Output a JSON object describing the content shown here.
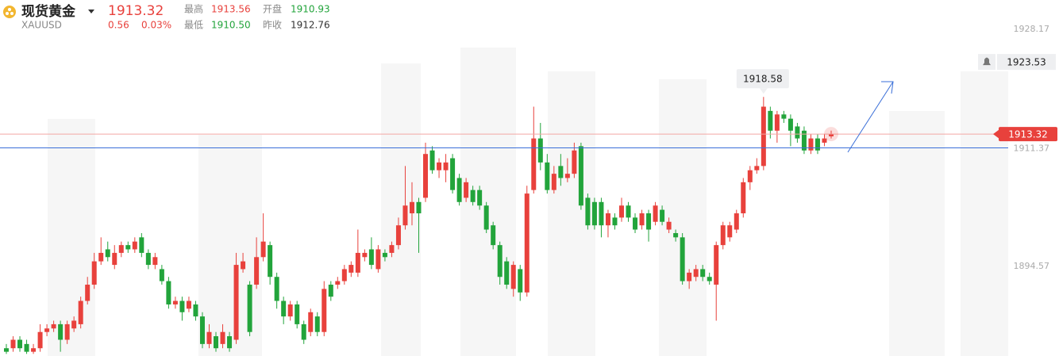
{
  "header": {
    "name": "现货黄金",
    "symbol": "XAUUSD",
    "price": "1913.32",
    "change": "0.56",
    "change_pct": "0.03%",
    "stats": [
      [
        "最高",
        "1913.56"
      ],
      [
        "开盘",
        "1910.93"
      ],
      [
        "最低",
        "1910.50"
      ],
      [
        "昨收",
        "1912.76"
      ]
    ]
  },
  "chart_data": {
    "type": "candlestick",
    "up_color": "#e8413c",
    "down_color": "#22a43b",
    "ylim": [
      1881.9,
      1932.3
    ],
    "yticks": [
      1928.17,
      1894.57
    ],
    "hline": {
      "value": 1911.37,
      "color": "#3a6fd8"
    },
    "alert": 1923.53,
    "ohlc": [
      [
        1883.0,
        1883.6,
        1882.2,
        1882.5
      ],
      [
        1883.0,
        1884.7,
        1882.5,
        1884.2
      ],
      [
        1884.2,
        1884.7,
        1882.5,
        1883.0
      ],
      [
        1883.6,
        1884.2,
        1882.2,
        1882.5
      ],
      [
        1882.5,
        1883.6,
        1882.2,
        1883.0
      ],
      [
        1883.0,
        1886.4,
        1882.5,
        1885.3
      ],
      [
        1885.3,
        1886.4,
        1884.7,
        1885.8
      ],
      [
        1885.8,
        1886.9,
        1885.3,
        1886.4
      ],
      [
        1886.4,
        1886.9,
        1882.5,
        1884.2
      ],
      [
        1884.2,
        1886.9,
        1883.6,
        1886.4
      ],
      [
        1885.8,
        1887.5,
        1885.3,
        1886.9
      ],
      [
        1886.4,
        1890.3,
        1885.8,
        1889.7
      ],
      [
        1889.7,
        1893.1,
        1889.2,
        1892.0
      ],
      [
        1892.0,
        1896.5,
        1891.4,
        1895.3
      ],
      [
        1895.3,
        1898.7,
        1894.8,
        1896.5
      ],
      [
        1897.0,
        1898.1,
        1895.3,
        1895.9
      ],
      [
        1894.8,
        1897.6,
        1894.2,
        1896.5
      ],
      [
        1896.5,
        1898.1,
        1895.9,
        1897.6
      ],
      [
        1897.6,
        1898.1,
        1896.5,
        1897.0
      ],
      [
        1897.0,
        1898.7,
        1896.5,
        1898.1
      ],
      [
        1898.7,
        1899.3,
        1895.9,
        1896.5
      ],
      [
        1896.5,
        1897.0,
        1894.2,
        1894.8
      ],
      [
        1894.8,
        1896.5,
        1894.2,
        1895.9
      ],
      [
        1894.2,
        1894.8,
        1892.0,
        1892.5
      ],
      [
        1892.5,
        1893.1,
        1888.6,
        1889.2
      ],
      [
        1889.2,
        1890.3,
        1888.6,
        1889.7
      ],
      [
        1889.7,
        1890.3,
        1886.9,
        1888.1
      ],
      [
        1888.6,
        1890.3,
        1888.1,
        1889.7
      ],
      [
        1889.2,
        1889.7,
        1886.9,
        1887.5
      ],
      [
        1887.5,
        1888.1,
        1883.0,
        1883.6
      ],
      [
        1883.6,
        1886.4,
        1883.0,
        1885.3
      ],
      [
        1884.7,
        1885.3,
        1882.5,
        1883.0
      ],
      [
        1883.6,
        1886.4,
        1883.0,
        1885.3
      ],
      [
        1884.7,
        1885.3,
        1882.5,
        1883.0
      ],
      [
        1884.2,
        1896.5,
        1883.6,
        1894.8
      ],
      [
        1894.2,
        1896.5,
        1893.7,
        1895.3
      ],
      [
        1892.0,
        1892.5,
        1884.7,
        1885.3
      ],
      [
        1892.0,
        1898.7,
        1891.4,
        1895.9
      ],
      [
        1895.9,
        1902.1,
        1895.3,
        1898.1
      ],
      [
        1897.6,
        1898.1,
        1892.0,
        1893.1
      ],
      [
        1893.1,
        1893.7,
        1888.6,
        1889.7
      ],
      [
        1889.7,
        1890.3,
        1886.4,
        1887.5
      ],
      [
        1887.5,
        1889.7,
        1886.9,
        1889.2
      ],
      [
        1889.2,
        1889.7,
        1885.8,
        1886.4
      ],
      [
        1886.4,
        1886.9,
        1883.6,
        1884.2
      ],
      [
        1885.3,
        1888.6,
        1884.7,
        1888.1
      ],
      [
        1887.5,
        1888.1,
        1884.7,
        1885.3
      ],
      [
        1885.3,
        1892.5,
        1884.7,
        1891.4
      ],
      [
        1892.0,
        1892.5,
        1889.7,
        1890.3
      ],
      [
        1892.0,
        1893.1,
        1891.4,
        1892.5
      ],
      [
        1892.5,
        1894.8,
        1892.0,
        1894.2
      ],
      [
        1893.7,
        1895.3,
        1893.1,
        1894.8
      ],
      [
        1893.7,
        1899.8,
        1893.1,
        1896.5
      ],
      [
        1895.9,
        1897.0,
        1895.3,
        1896.5
      ],
      [
        1897.0,
        1898.7,
        1894.2,
        1894.8
      ],
      [
        1894.2,
        1897.6,
        1893.7,
        1897.0
      ],
      [
        1896.5,
        1897.0,
        1895.3,
        1895.9
      ],
      [
        1896.5,
        1898.1,
        1895.9,
        1897.6
      ],
      [
        1897.6,
        1901.5,
        1897.0,
        1900.4
      ],
      [
        1900.4,
        1908.8,
        1899.8,
        1903.2
      ],
      [
        1902.1,
        1906.5,
        1900.4,
        1903.7
      ],
      [
        1903.7,
        1904.3,
        1896.5,
        1902.1
      ],
      [
        1904.3,
        1912.1,
        1903.7,
        1910.5
      ],
      [
        1911.0,
        1911.6,
        1907.7,
        1908.2
      ],
      [
        1908.2,
        1909.9,
        1907.1,
        1909.3
      ],
      [
        1908.2,
        1910.5,
        1906.5,
        1909.3
      ],
      [
        1909.9,
        1910.5,
        1904.9,
        1905.4
      ],
      [
        1907.1,
        1907.7,
        1903.2,
        1903.7
      ],
      [
        1904.3,
        1907.1,
        1903.7,
        1906.5
      ],
      [
        1905.4,
        1906.0,
        1903.2,
        1903.7
      ],
      [
        1905.4,
        1906.0,
        1902.6,
        1903.2
      ],
      [
        1903.2,
        1903.7,
        1899.3,
        1899.8
      ],
      [
        1900.4,
        1900.9,
        1897.0,
        1897.6
      ],
      [
        1897.6,
        1898.1,
        1892.0,
        1893.1
      ],
      [
        1895.3,
        1895.9,
        1891.4,
        1892.0
      ],
      [
        1891.4,
        1895.3,
        1890.3,
        1894.8
      ],
      [
        1894.2,
        1894.8,
        1889.7,
        1890.9
      ],
      [
        1890.9,
        1906.0,
        1890.3,
        1904.9
      ],
      [
        1905.4,
        1917.2,
        1904.9,
        1912.7
      ],
      [
        1912.7,
        1914.9,
        1908.2,
        1909.3
      ],
      [
        1909.3,
        1910.5,
        1904.9,
        1905.4
      ],
      [
        1905.4,
        1908.8,
        1904.9,
        1907.7
      ],
      [
        1908.8,
        1910.5,
        1906.0,
        1907.1
      ],
      [
        1907.1,
        1909.9,
        1906.5,
        1907.7
      ],
      [
        1907.7,
        1912.1,
        1907.1,
        1911.0
      ],
      [
        1911.6,
        1912.1,
        1902.6,
        1903.2
      ],
      [
        1904.3,
        1904.9,
        1899.8,
        1900.4
      ],
      [
        1903.7,
        1904.3,
        1899.8,
        1900.4
      ],
      [
        1903.7,
        1904.3,
        1898.7,
        1900.4
      ],
      [
        1900.4,
        1902.6,
        1898.7,
        1902.1
      ],
      [
        1901.5,
        1902.1,
        1899.8,
        1900.4
      ],
      [
        1901.5,
        1904.3,
        1900.9,
        1903.2
      ],
      [
        1903.2,
        1903.7,
        1900.9,
        1901.5
      ],
      [
        1901.5,
        1902.1,
        1899.3,
        1899.8
      ],
      [
        1900.4,
        1902.6,
        1899.8,
        1902.1
      ],
      [
        1902.1,
        1902.6,
        1898.1,
        1899.8
      ],
      [
        1900.9,
        1903.7,
        1900.4,
        1903.2
      ],
      [
        1902.6,
        1903.2,
        1900.4,
        1900.9
      ],
      [
        1899.8,
        1901.5,
        1899.3,
        1900.9
      ],
      [
        1899.3,
        1899.8,
        1898.1,
        1898.7
      ],
      [
        1898.7,
        1899.3,
        1892.0,
        1892.5
      ],
      [
        1892.5,
        1894.2,
        1891.4,
        1893.7
      ],
      [
        1893.1,
        1894.8,
        1892.5,
        1894.2
      ],
      [
        1894.2,
        1894.8,
        1892.5,
        1893.1
      ],
      [
        1893.1,
        1893.7,
        1892.0,
        1892.5
      ],
      [
        1892.0,
        1898.1,
        1886.9,
        1897.6
      ],
      [
        1897.6,
        1900.9,
        1897.0,
        1900.4
      ],
      [
        1898.7,
        1900.9,
        1898.1,
        1900.4
      ],
      [
        1899.8,
        1902.6,
        1899.3,
        1902.1
      ],
      [
        1902.1,
        1907.1,
        1901.5,
        1906.5
      ],
      [
        1906.5,
        1908.8,
        1905.4,
        1908.2
      ],
      [
        1908.2,
        1909.9,
        1907.7,
        1908.8
      ],
      [
        1908.8,
        1918.58,
        1908.2,
        1917.2
      ],
      [
        1916.6,
        1917.2,
        1912.7,
        1913.8
      ],
      [
        1913.8,
        1916.6,
        1912.1,
        1916.1
      ],
      [
        1916.1,
        1916.6,
        1914.9,
        1915.5
      ],
      [
        1915.5,
        1916.1,
        1911.6,
        1913.8
      ],
      [
        1914.4,
        1914.9,
        1912.1,
        1912.7
      ],
      [
        1913.8,
        1914.4,
        1910.5,
        1911.0
      ],
      [
        1911.0,
        1913.3,
        1910.5,
        1912.7
      ],
      [
        1912.7,
        1913.3,
        1910.5,
        1911.0
      ],
      [
        1912.1,
        1913.3,
        1911.6,
        1912.7
      ],
      [
        1913.0,
        1913.8,
        1912.7,
        1913.32
      ]
    ]
  }
}
